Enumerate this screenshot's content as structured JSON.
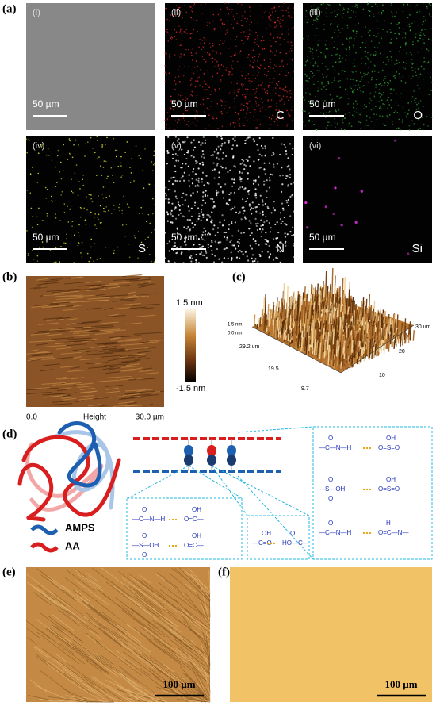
{
  "panel_labels": [
    "(a)",
    "(b)",
    "(c)",
    "(d)",
    "(e)",
    "(f)"
  ],
  "eds_tiles": [
    {
      "label": "(i)",
      "scale": "50 µm"
    },
    {
      "label": "(ii)",
      "scale": "50 µm",
      "element": "C"
    },
    {
      "label": "(iii)",
      "scale": "50 µm",
      "element": "O"
    },
    {
      "label": "(iv)",
      "scale": "50 µm",
      "element": "S"
    },
    {
      "label": "(v)",
      "scale": "50 µm",
      "element": "N"
    },
    {
      "label": "(vi)",
      "scale": "50 µm",
      "element": "Si"
    }
  ],
  "afm_2d": {
    "colorbar_max": "1.5 nm",
    "colorbar_min": "-1.5 nm",
    "x_start": "0.0",
    "x_label": "Height",
    "x_end": "30.0 µm"
  },
  "afm_3d": {
    "z_labels": [
      "1.5 nm",
      "0.0 nm"
    ],
    "y_labels": [
      "29.2 um",
      "19.5",
      "9.7"
    ],
    "x_labels": [
      "30 um",
      "20",
      "10"
    ]
  },
  "schematic": {
    "legend": [
      "AMPS",
      "AA"
    ],
    "boxes": [
      [
        {
          "left": "—C—N—H",
          "left_top": "O",
          "right": "O=C—",
          "right_top": "OH"
        },
        {
          "left": "—S—OH",
          "left_top": "O",
          "left_bottom": "O",
          "right": "O=C—",
          "right_top": "OH"
        }
      ],
      [
        {
          "left": "—C=O",
          "left_top": "OH",
          "right": "HO—C—",
          "right_top": "O"
        }
      ],
      [
        {
          "left": "—C—N—H",
          "left_top": "O",
          "right": "O=S=O",
          "right_top": "OH"
        },
        {
          "left": "—S—OH",
          "left_top": "O",
          "left_bottom": "O",
          "right": "O=S=O",
          "right_top": "OH"
        },
        {
          "left": "—C—N—H",
          "left_top": "O",
          "right": "O=C—N—",
          "right_top": "H"
        }
      ]
    ]
  },
  "optical": [
    {
      "scale": "100 µm"
    },
    {
      "scale": "100 µm"
    }
  ]
}
